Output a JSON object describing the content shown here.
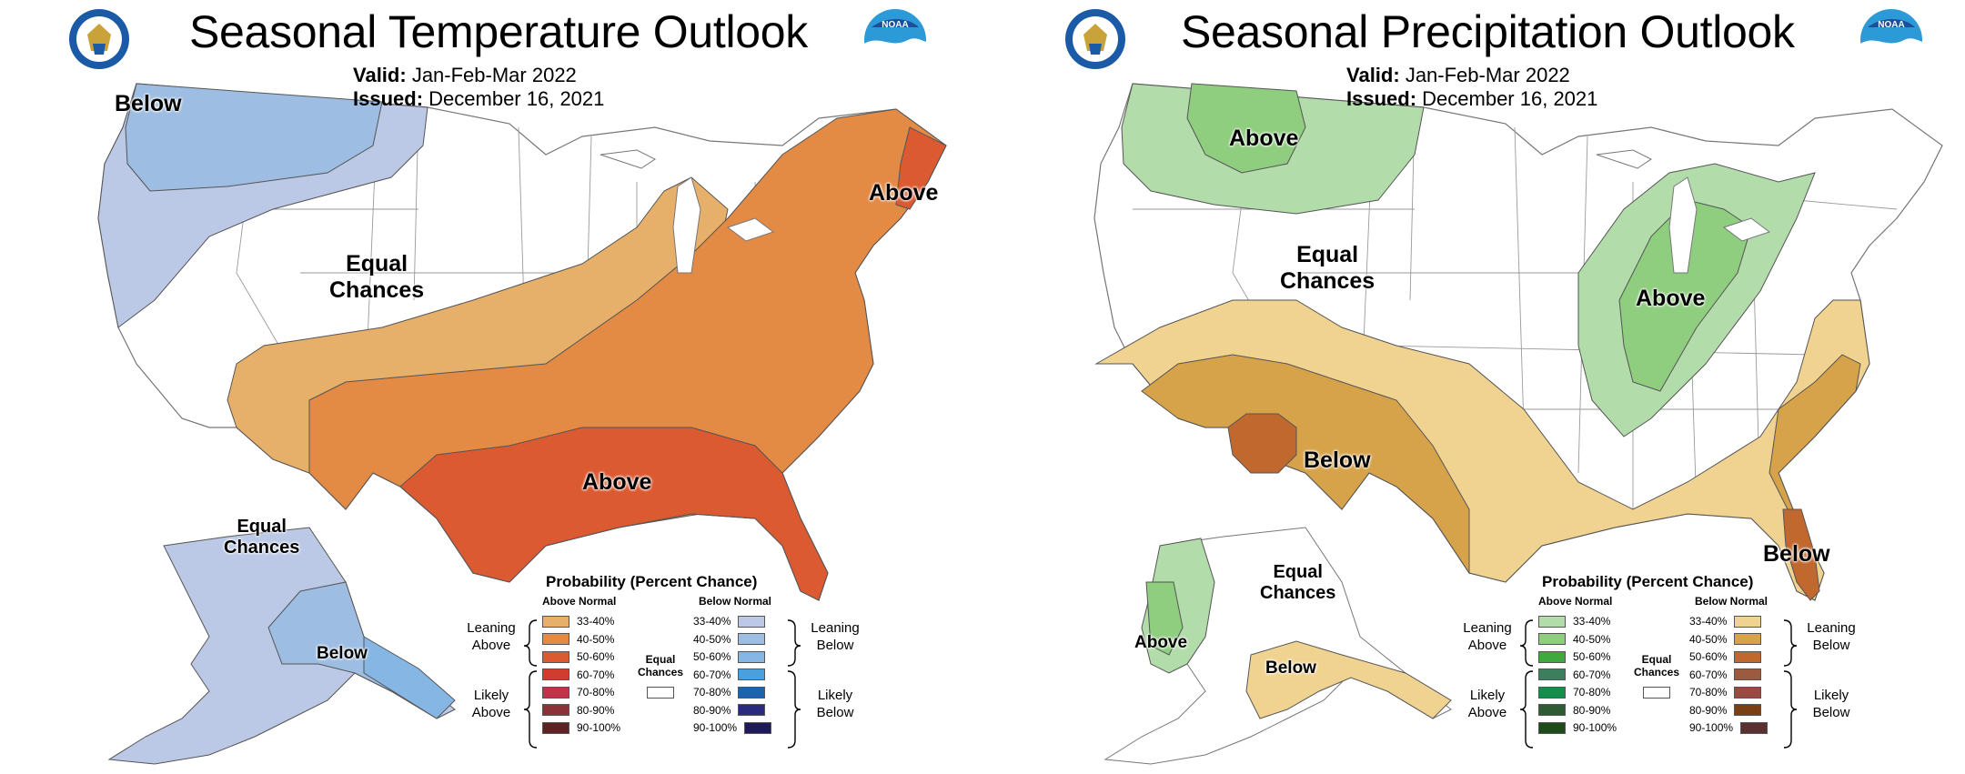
{
  "temperature": {
    "title": "Seasonal Temperature Outlook",
    "valid_label": "Valid:",
    "valid_value": "Jan-Feb-Mar 2022",
    "issued_label": "Issued:",
    "issued_value": "December 16, 2021",
    "labels": {
      "nw_below": "Below",
      "equal_chances": "Equal\nChances",
      "ne_above": "Above",
      "south_above": "Above",
      "ak_equal_chances": "Equal\nChances",
      "ak_below": "Below"
    },
    "legend": {
      "title": "Probability (Percent Chance)",
      "above_header": "Above Normal",
      "below_header": "Below Normal",
      "leaning_above": "Leaning\nAbove",
      "likely_above": "Likely\nAbove",
      "leaning_below": "Leaning\nBelow",
      "likely_below": "Likely\nBelow",
      "equal_chances": "Equal\nChances",
      "ranges": [
        "33-40%",
        "40-50%",
        "50-60%",
        "60-70%",
        "70-80%",
        "80-90%",
        "90-100%"
      ],
      "above_colors": [
        "#e7b06a",
        "#e38a45",
        "#dc5a32",
        "#d13c2e",
        "#c4314a",
        "#8b3138",
        "#5e2124"
      ],
      "below_colors": [
        "#bcc9e6",
        "#9dbde2",
        "#86b6e4",
        "#4aa0dc",
        "#1b63ae",
        "#2a2a7e",
        "#1d1a57"
      ]
    }
  },
  "precipitation": {
    "title": "Seasonal Precipitation Outlook",
    "valid_label": "Valid:",
    "valid_value": "Jan-Feb-Mar 2022",
    "issued_label": "Issued:",
    "issued_value": "December 16, 2021",
    "labels": {
      "nw_above": "Above",
      "equal_chances": "Equal\nChances",
      "ov_above": "Above",
      "sw_below": "Below",
      "fl_below": "Below",
      "ak_above": "Above",
      "ak_equal_chances": "Equal\nChances",
      "ak_below": "Below"
    },
    "legend": {
      "title": "Probability (Percent Chance)",
      "above_header": "Above Normal",
      "below_header": "Below Normal",
      "leaning_above": "Leaning\nAbove",
      "likely_above": "Likely\nAbove",
      "leaning_below": "Leaning\nBelow",
      "likely_below": "Likely\nBelow",
      "equal_chances": "Equal\nChances",
      "ranges": [
        "33-40%",
        "40-50%",
        "50-60%",
        "60-70%",
        "70-80%",
        "80-90%",
        "90-100%"
      ],
      "above_colors": [
        "#b3dcab",
        "#8fcd7f",
        "#3fa83f",
        "#3b7f5e",
        "#148e4c",
        "#2e5a34",
        "#1f4a1c"
      ],
      "below_colors": [
        "#f1d391",
        "#d6a34a",
        "#c1682f",
        "#9c5a3f",
        "#9a4a40",
        "#7a3f12",
        "#5a3030"
      ]
    }
  }
}
